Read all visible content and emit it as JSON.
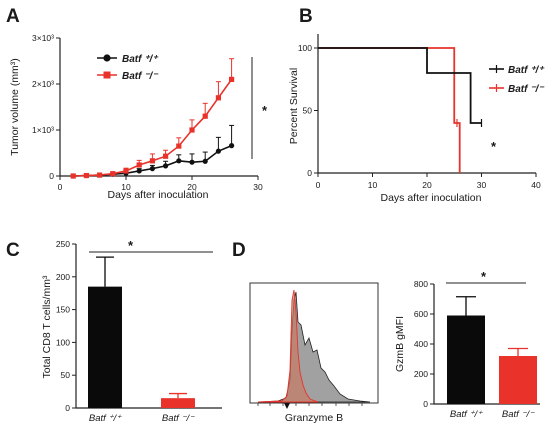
{
  "panels": {
    "A": "A",
    "B": "B",
    "C": "C",
    "D": "D"
  },
  "chart_data": [
    {
      "id": "A",
      "type": "line",
      "xlabel": "Days after inoculation",
      "ylabel": "Tumor volume (mm³)",
      "xlim": [
        0,
        30
      ],
      "ylim": [
        0,
        3000
      ],
      "xticks": [
        "0",
        "10",
        "20",
        "30"
      ],
      "yticks": [
        "0",
        "1×10³",
        "2×10³",
        "3×10³"
      ],
      "significance": "*",
      "series": [
        {
          "name": "Batf ⁺/⁺",
          "color": "#111111",
          "marker": "circle",
          "x": [
            2,
            4,
            6,
            8,
            10,
            12,
            14,
            16,
            18,
            20,
            22,
            24,
            26
          ],
          "y": [
            0,
            10,
            20,
            40,
            60,
            110,
            160,
            220,
            330,
            300,
            320,
            540,
            660
          ],
          "err": [
            0,
            5,
            10,
            15,
            30,
            50,
            70,
            100,
            130,
            180,
            200,
            300,
            440
          ]
        },
        {
          "name": "Batf ⁻/⁻",
          "color": "#e8322a",
          "marker": "square",
          "x": [
            2,
            4,
            6,
            8,
            10,
            12,
            14,
            16,
            18,
            20,
            22,
            24,
            26
          ],
          "y": [
            0,
            10,
            20,
            50,
            110,
            240,
            330,
            430,
            650,
            1000,
            1300,
            1700,
            2100
          ],
          "err": [
            0,
            5,
            10,
            30,
            60,
            100,
            150,
            130,
            180,
            220,
            280,
            350,
            450
          ]
        }
      ]
    },
    {
      "id": "B",
      "type": "line",
      "xlabel": "Days after inoculation",
      "ylabel": "Percent Survival",
      "xlim": [
        0,
        40
      ],
      "ylim": [
        0,
        100
      ],
      "xticks": [
        "0",
        "10",
        "20",
        "30",
        "40"
      ],
      "yticks": [
        "0",
        "50",
        "100"
      ],
      "significance": "*",
      "series": [
        {
          "name": "Batf ⁺/⁺",
          "color": "#111111",
          "x": [
            0,
            20,
            20,
            28,
            28,
            30
          ],
          "y": [
            100,
            100,
            80,
            80,
            40,
            40
          ]
        },
        {
          "name": "Batf ⁻/⁻",
          "color": "#e8322a",
          "x": [
            0,
            25,
            25,
            26,
            26
          ],
          "y": [
            100,
            100,
            40,
            40,
            0
          ]
        }
      ]
    },
    {
      "id": "C",
      "type": "bar",
      "ylabel": "Total CD8 T cells/mm³",
      "ylim": [
        0,
        250
      ],
      "yticks": [
        "0",
        "50",
        "100",
        "150",
        "200",
        "250"
      ],
      "significance": "*",
      "categories": [
        "Batf ⁺/⁺",
        "Batf ⁻/⁻"
      ],
      "values": [
        185,
        15
      ],
      "err": [
        45,
        7
      ],
      "colors": [
        "#0a0a0a",
        "#e8322a"
      ]
    },
    {
      "id": "D-histogram",
      "type": "area",
      "xlabel": "Granzyme B",
      "series": [
        {
          "name": "Batf ⁺/⁺",
          "color": "#7a7a7a"
        },
        {
          "name": "Batf ⁻/⁻",
          "color": "#c9785f"
        }
      ]
    },
    {
      "id": "D-bar",
      "type": "bar",
      "ylabel": "GzmB gMFI",
      "ylim": [
        0,
        800
      ],
      "yticks": [
        "0",
        "200",
        "400",
        "600",
        "800"
      ],
      "significance": "*",
      "categories": [
        "Batf ⁺/⁺",
        "Batf ⁻/⁻"
      ],
      "values": [
        590,
        320
      ],
      "err": [
        125,
        50
      ],
      "colors": [
        "#0a0a0a",
        "#e8322a"
      ]
    }
  ]
}
